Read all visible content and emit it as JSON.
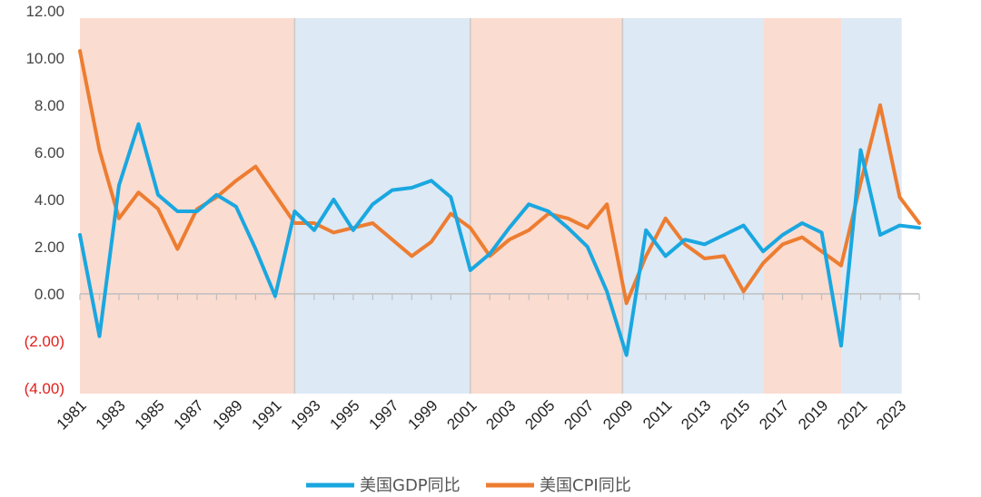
{
  "chart_data": {
    "type": "line",
    "title": "",
    "xlabel": "",
    "ylabel": "",
    "ylim": [
      -4,
      12
    ],
    "y_ticks": [
      {
        "value": 12,
        "label": "12.00"
      },
      {
        "value": 10,
        "label": "10.00"
      },
      {
        "value": 8,
        "label": "8.00"
      },
      {
        "value": 6,
        "label": "6.00"
      },
      {
        "value": 4,
        "label": "4.00"
      },
      {
        "value": 2,
        "label": "2.00"
      },
      {
        "value": 0,
        "label": "0.00"
      },
      {
        "value": -2,
        "label": "(2.00)"
      },
      {
        "value": -4,
        "label": "(4.00)"
      }
    ],
    "x": [
      1981,
      1982,
      1983,
      1984,
      1985,
      1986,
      1987,
      1988,
      1989,
      1990,
      1991,
      1992,
      1993,
      1994,
      1995,
      1996,
      1997,
      1998,
      1999,
      2000,
      2001,
      2002,
      2003,
      2004,
      2005,
      2006,
      2007,
      2008,
      2009,
      2010,
      2011,
      2012,
      2013,
      2014,
      2015,
      2016,
      2017,
      2018,
      2019,
      2020,
      2021,
      2022,
      2023,
      2024
    ],
    "x_tick_labels": [
      "1981",
      "1983",
      "1985",
      "1987",
      "1989",
      "1991",
      "1993",
      "1995",
      "1997",
      "1999",
      "2001",
      "2003",
      "2005",
      "2007",
      "2009",
      "2011",
      "2013",
      "2015",
      "2017",
      "2019",
      "2021",
      "2023"
    ],
    "series": [
      {
        "name": "美国GDP同比",
        "color": "#1aa7e0",
        "values": [
          2.5,
          -1.8,
          4.6,
          7.2,
          4.2,
          3.5,
          3.5,
          4.2,
          3.7,
          1.9,
          -0.1,
          3.5,
          2.7,
          4.0,
          2.7,
          3.8,
          4.4,
          4.5,
          4.8,
          4.1,
          1.0,
          1.7,
          2.8,
          3.8,
          3.5,
          2.8,
          2.0,
          0.1,
          -2.6,
          2.7,
          1.6,
          2.3,
          2.1,
          2.5,
          2.9,
          1.8,
          2.5,
          3.0,
          2.6,
          -2.2,
          6.1,
          2.5,
          2.9,
          2.8
        ]
      },
      {
        "name": "美国CPI同比",
        "color": "#ed7d31",
        "values": [
          10.3,
          6.1,
          3.2,
          4.3,
          3.6,
          1.9,
          3.6,
          4.1,
          4.8,
          5.4,
          4.2,
          3.0,
          3.0,
          2.6,
          2.8,
          3.0,
          2.3,
          1.6,
          2.2,
          3.4,
          2.8,
          1.6,
          2.3,
          2.7,
          3.4,
          3.2,
          2.8,
          3.8,
          -0.4,
          1.6,
          3.2,
          2.1,
          1.5,
          1.6,
          0.1,
          1.3,
          2.1,
          2.4,
          1.8,
          1.2,
          4.7,
          8.0,
          4.1,
          3.0
        ]
      }
    ],
    "shaded_periods": [
      {
        "start": 1981,
        "end": 1992,
        "color": "#fbdcd0"
      },
      {
        "start": 1992,
        "end": 2001,
        "color": "#dde9f5"
      },
      {
        "start": 2001,
        "end": 2008.8,
        "color": "#fbdcd0"
      },
      {
        "start": 2008.8,
        "end": 2016,
        "color": "#dde9f5"
      },
      {
        "start": 2016,
        "end": 2020,
        "color": "#fbdcd0"
      },
      {
        "start": 2020,
        "end": 2023.1,
        "color": "#dde9f5"
      }
    ],
    "negative_label_color": "#e0201b",
    "positive_label_color": "#444444",
    "grid": false,
    "legend_position": "bottom"
  }
}
